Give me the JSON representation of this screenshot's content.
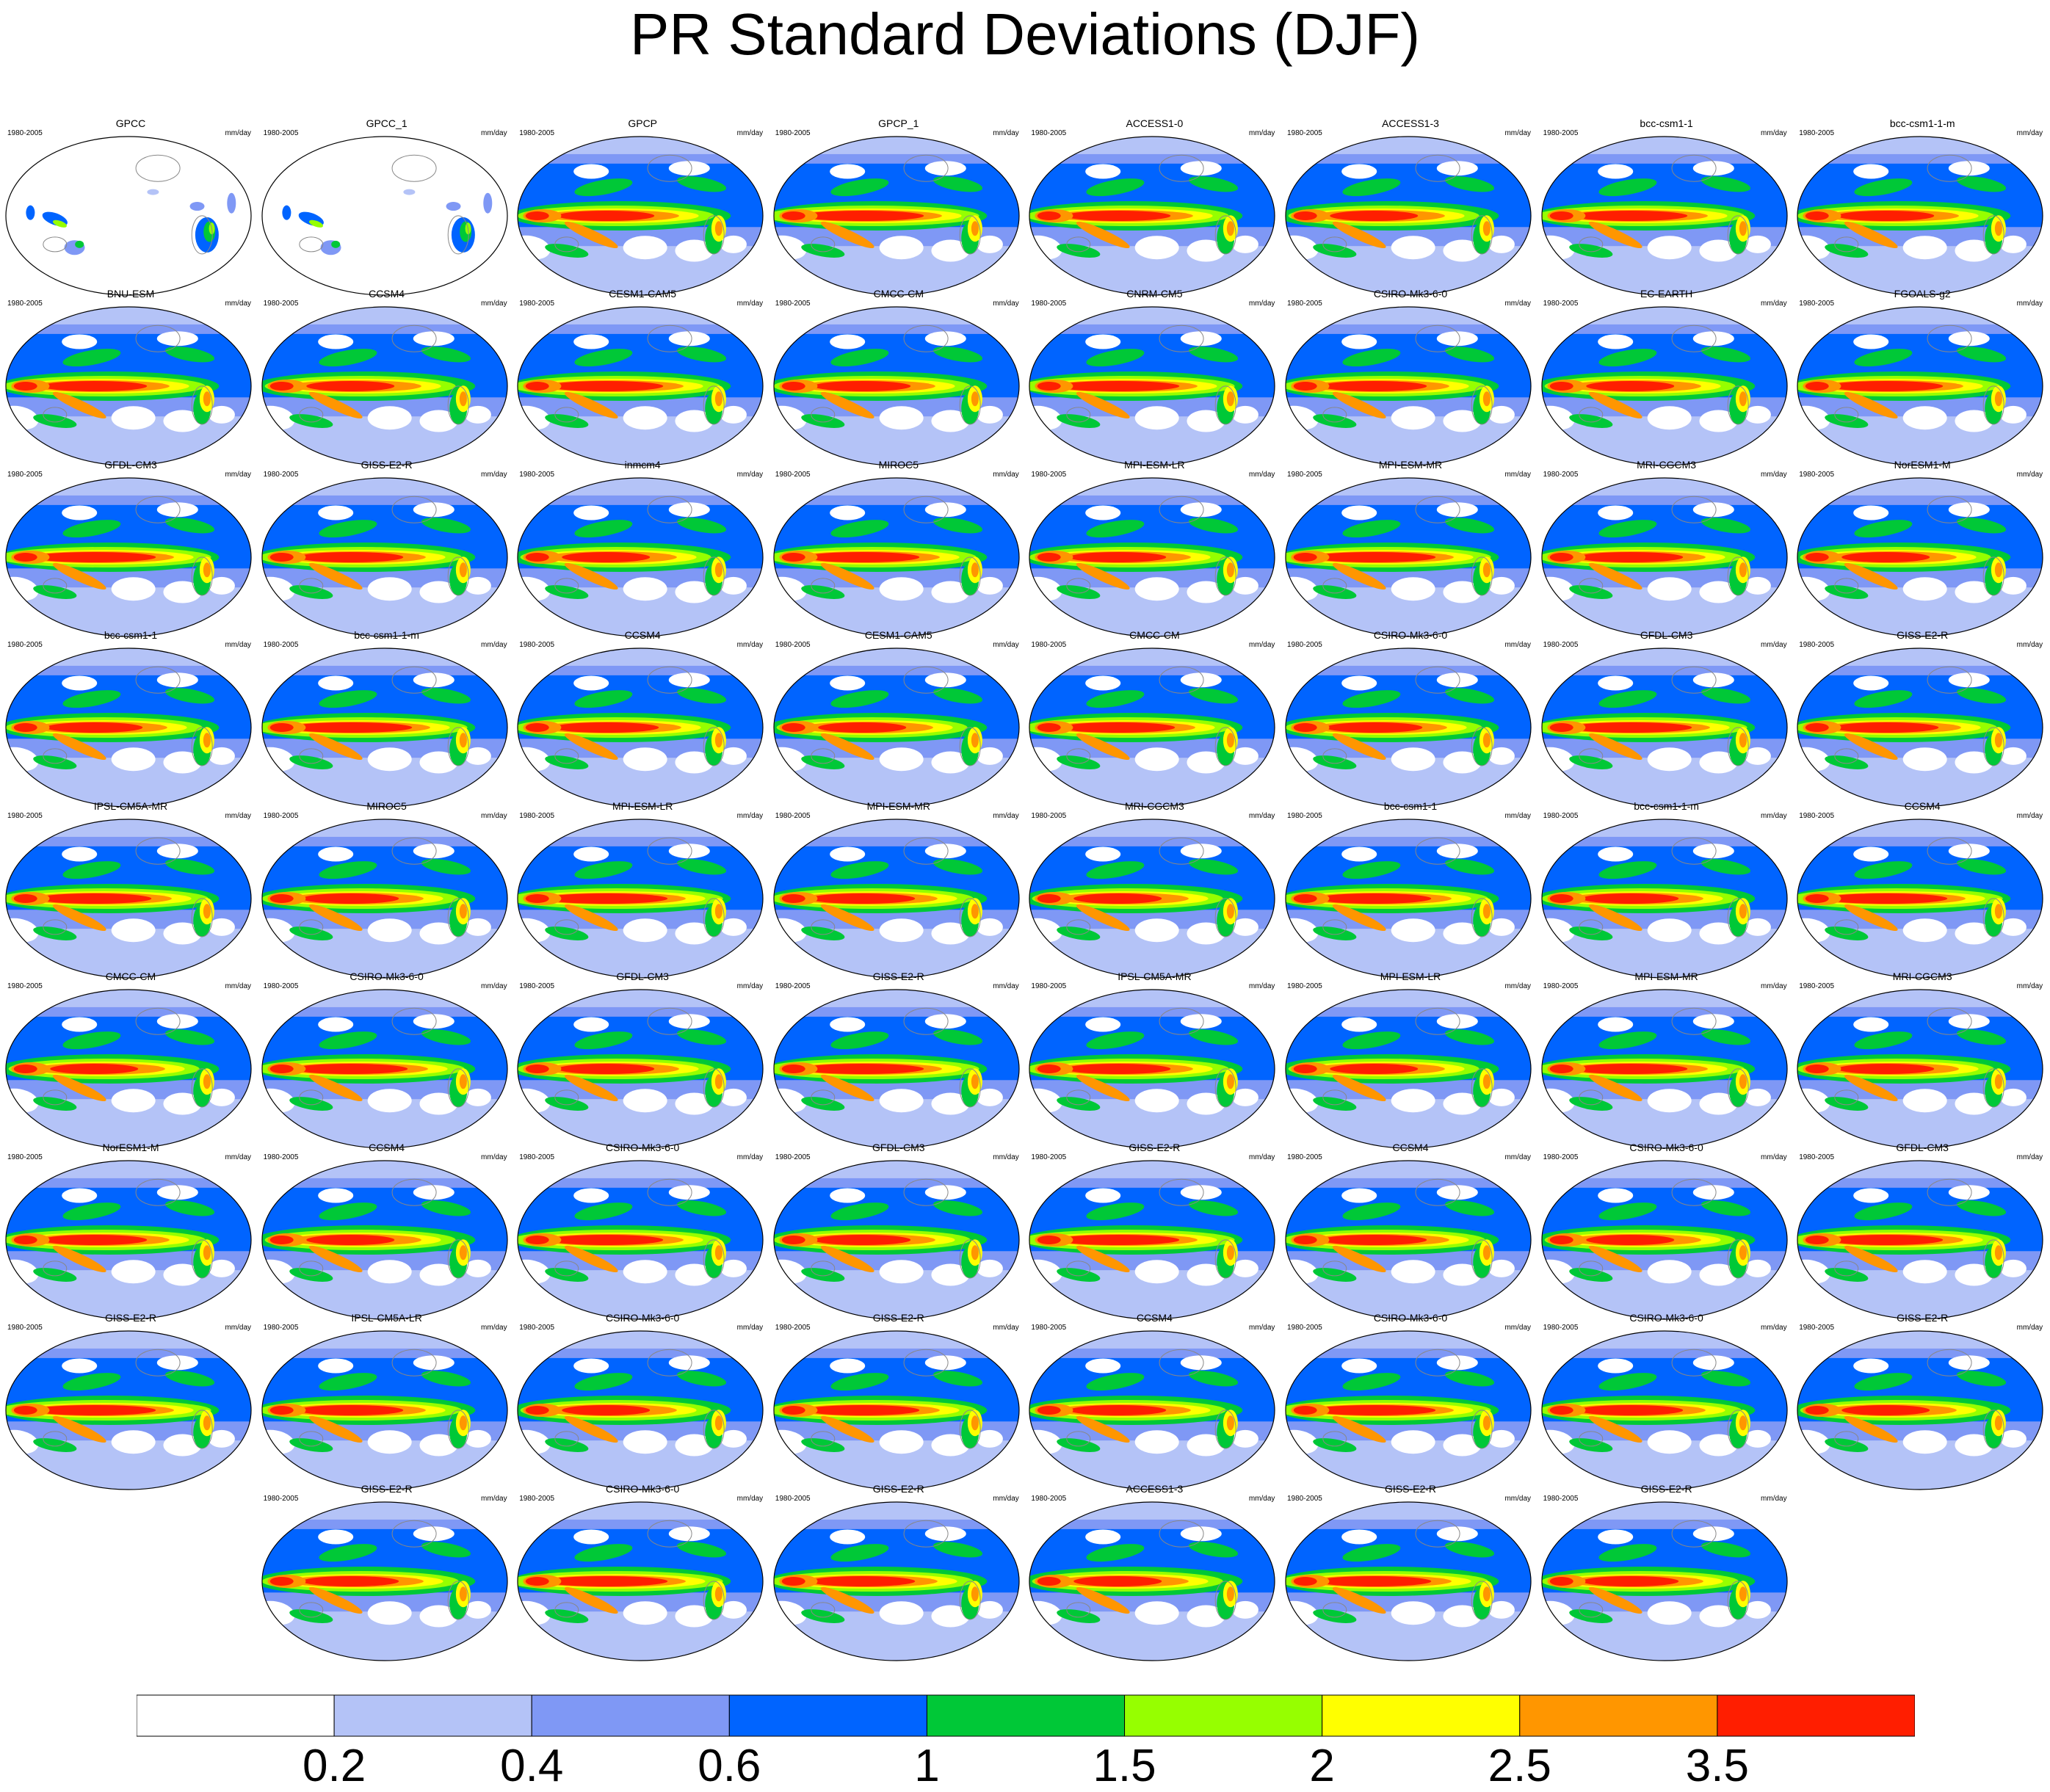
{
  "figure": {
    "title": "PR Standard Deviations (DJF)",
    "years": "1980-2005",
    "units": "mm/day"
  },
  "rows": [
    [
      "GPCC",
      "GPCC_1",
      "GPCP",
      "GPCP_1",
      "ACCESS1-0",
      "ACCESS1-3",
      "bcc-csm1-1",
      "bcc-csm1-1-m"
    ],
    [
      "BNU-ESM",
      "CCSM4",
      "CESM1-CAM5",
      "CMCC-CM",
      "CNRM-CM5",
      "CSIRO-Mk3-6-0",
      "EC-EARTH",
      "FGOALS-g2"
    ],
    [
      "GFDL-CM3",
      "GISS-E2-R",
      "inmcm4",
      "MIROC5",
      "MPI-ESM-LR",
      "MPI-ESM-MR",
      "MRI-CGCM3",
      "NorESM1-M"
    ],
    [
      "bcc-csm1-1",
      "bcc-csm1-1-m",
      "CCSM4",
      "CESM1-CAM5",
      "CMCC-CM",
      "CSIRO-Mk3-6-0",
      "GFDL-CM3",
      "GISS-E2-R"
    ],
    [
      "IPSL-CM5A-MR",
      "MIROC5",
      "MPI-ESM-LR",
      "MPI-ESM-MR",
      "MRI-CGCM3",
      "bcc-csm1-1",
      "bcc-csm1-1-m",
      "CCSM4"
    ],
    [
      "CMCC-CM",
      "CSIRO-Mk3-6-0",
      "GFDL-CM3",
      "GISS-E2-R",
      "IPSL-CM5A-MR",
      "MPI-ESM-LR",
      "MPI-ESM-MR",
      "MRI-CGCM3"
    ],
    [
      "NorESM1-M",
      "CCSM4",
      "CSIRO-Mk3-6-0",
      "GFDL-CM3",
      "GISS-E2-R",
      "CCSM4",
      "CSIRO-Mk3-6-0",
      "GFDL-CM3"
    ],
    [
      "GISS-E2-R",
      "IPSL-CM5A-LR",
      "CSIRO-Mk3-6-0",
      "GISS-E2-R",
      "CCSM4",
      "CSIRO-Mk3-6-0",
      "CSIRO-Mk3-6-0",
      "GISS-E2-R"
    ],
    [
      "GISS-E2-R",
      "CSIRO-Mk3-6-0",
      "GISS-E2-R",
      "ACCESS1-3",
      "GISS-E2-R",
      "GISS-E2-R"
    ]
  ],
  "observation_panels": [
    "GPCC",
    "GPCC_1"
  ],
  "colorbar": {
    "colors": [
      "#ffffff",
      "#b4c3f7",
      "#7f98f5",
      "#0064ff",
      "#00c837",
      "#96ff00",
      "#ffff00",
      "#ff9600",
      "#ff1e00"
    ],
    "labels": [
      "0.2",
      "0.4",
      "0.6",
      "1",
      "1.5",
      "2",
      "2.5",
      "3.5"
    ]
  }
}
